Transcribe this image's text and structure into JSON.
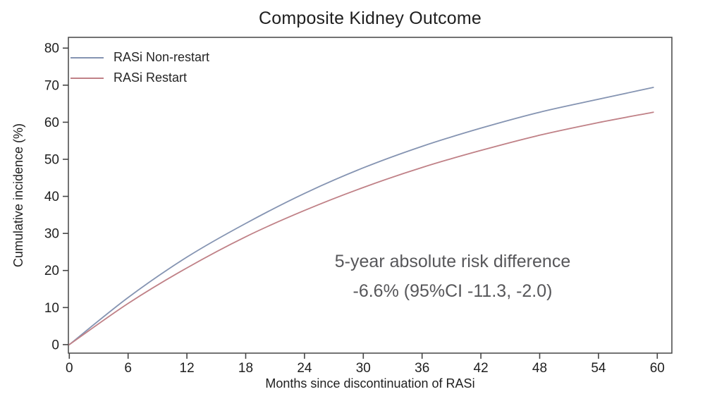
{
  "figure": {
    "title": "Composite Kidney Outcome",
    "x_axis_label": "Months since discontinuation of RASi",
    "y_axis_label": "Cumulative incidence (%)",
    "annotation": {
      "line1": "5-year absolute risk difference",
      "line2": "-6.6% (95%CI -11.3, -2.0)"
    }
  },
  "chart_data": {
    "type": "line",
    "title": "Composite Kidney Outcome",
    "xlabel": "Months since discontinuation of RASi",
    "ylabel": "Cumulative incidence (%)",
    "x": [
      0,
      6,
      12,
      18,
      24,
      30,
      36,
      42,
      48,
      54,
      59.6
    ],
    "series": [
      {
        "name": "RASi Non-restart",
        "color": "#8594b2",
        "values": [
          0,
          12.7,
          23.6,
          32.7,
          40.8,
          47.7,
          53.5,
          58.4,
          62.7,
          66.2,
          69.4
        ]
      },
      {
        "name": "RASi Restart",
        "color": "#c08187",
        "values": [
          0,
          11.1,
          20.7,
          29.1,
          36.2,
          42.4,
          47.8,
          52.4,
          56.5,
          59.9,
          62.7
        ]
      }
    ],
    "x_ticks": [
      0,
      6,
      12,
      18,
      24,
      30,
      36,
      42,
      48,
      54,
      60
    ],
    "y_ticks": [
      0,
      10,
      20,
      30,
      40,
      50,
      60,
      70,
      80
    ],
    "xlim": [
      0,
      60
    ],
    "ylim": [
      0,
      80
    ],
    "grid": false,
    "legend_position": "top-left",
    "annotation": "5-year absolute risk difference -6.6% (95%CI -11.3, -2.0)",
    "axis_color": "#454545",
    "annotation_color": "#57575a"
  }
}
